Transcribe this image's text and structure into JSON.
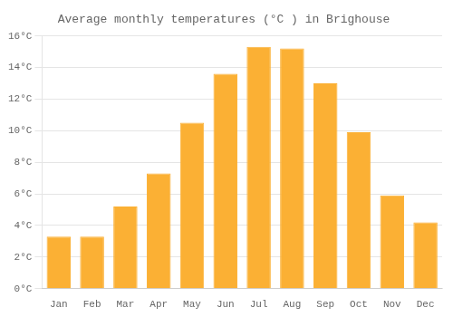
{
  "chart_data": {
    "type": "bar",
    "title": "Average monthly temperatures (°C ) in Brighouse",
    "categories": [
      "Jan",
      "Feb",
      "Mar",
      "Apr",
      "May",
      "Jun",
      "Jul",
      "Aug",
      "Sep",
      "Oct",
      "Nov",
      "Dec"
    ],
    "values": [
      3.3,
      3.3,
      5.2,
      7.3,
      10.5,
      13.6,
      15.3,
      15.2,
      13.0,
      9.9,
      5.9,
      4.2
    ],
    "color": "#FBB034",
    "ylim": [
      0,
      16
    ],
    "yticks": [
      {
        "value": 0,
        "label": "0°C"
      },
      {
        "value": 2,
        "label": "2°C"
      },
      {
        "value": 4,
        "label": "4°C"
      },
      {
        "value": 6,
        "label": "6°C"
      },
      {
        "value": 8,
        "label": "8°C"
      },
      {
        "value": 10,
        "label": "10°C"
      },
      {
        "value": 12,
        "label": "12°C"
      },
      {
        "value": 14,
        "label": "14°C"
      },
      {
        "value": 16,
        "label": "16°C"
      }
    ],
    "grid": true
  }
}
